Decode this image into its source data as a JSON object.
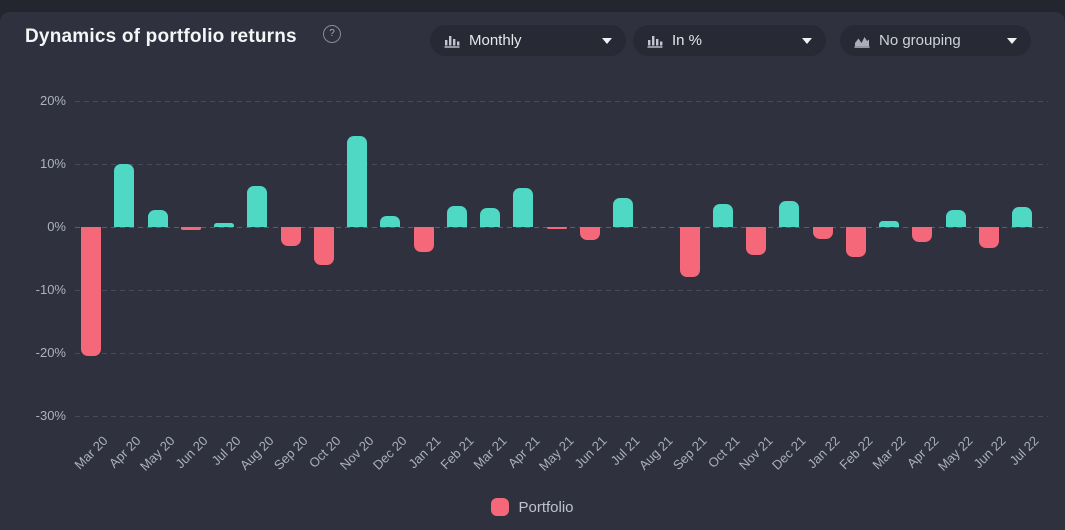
{
  "header": {
    "title": "Dynamics of portfolio returns",
    "help_glyph": "?"
  },
  "controls": {
    "interval_dropdown": {
      "value": "Monthly",
      "icon": "bar-chart-icon"
    },
    "unit_dropdown": {
      "value": "In %",
      "icon": "bar-chart-icon"
    },
    "grouping_dropdown": {
      "value": "No grouping",
      "icon": "area-chart-icon"
    }
  },
  "legend": {
    "label": "Portfolio",
    "swatch_color": "#f4687a"
  },
  "chart_data": {
    "type": "bar",
    "title": "Dynamics of portfolio returns",
    "xlabel": "",
    "ylabel": "",
    "unit": "%",
    "ylim": [
      -30,
      20
    ],
    "y_ticks": [
      20,
      10,
      0,
      -10,
      -20,
      -30
    ],
    "grid": "dashed horizontal",
    "legend_position": "bottom",
    "series_name": "Portfolio",
    "positive_color": "#4fd8c4",
    "negative_color": "#f4687a",
    "categories": [
      "Mar 20",
      "Apr 20",
      "May 20",
      "Jun 20",
      "Jul 20",
      "Aug 20",
      "Sep 20",
      "Oct 20",
      "Nov 20",
      "Dec 20",
      "Jan 21",
      "Feb 21",
      "Mar 21",
      "Apr 21",
      "May 21",
      "Jun 21",
      "Jul 21",
      "Aug 21",
      "Sep 21",
      "Oct 21",
      "Nov 21",
      "Dec 21",
      "Jan 22",
      "Feb 22",
      "Mar 22",
      "Apr 22",
      "May 22",
      "Jun 22",
      "Jul 22"
    ],
    "values": [
      -20.5,
      10,
      2.7,
      -0.5,
      0.7,
      6.5,
      -3,
      -6,
      14.5,
      1.7,
      -4,
      3.3,
      3,
      6.2,
      -0.3,
      -2,
      4.6,
      0,
      -8,
      3.7,
      -4.5,
      4.2,
      -1.9,
      -4.7,
      1,
      -2.4,
      2.7,
      -3.3,
      3.2
    ]
  }
}
